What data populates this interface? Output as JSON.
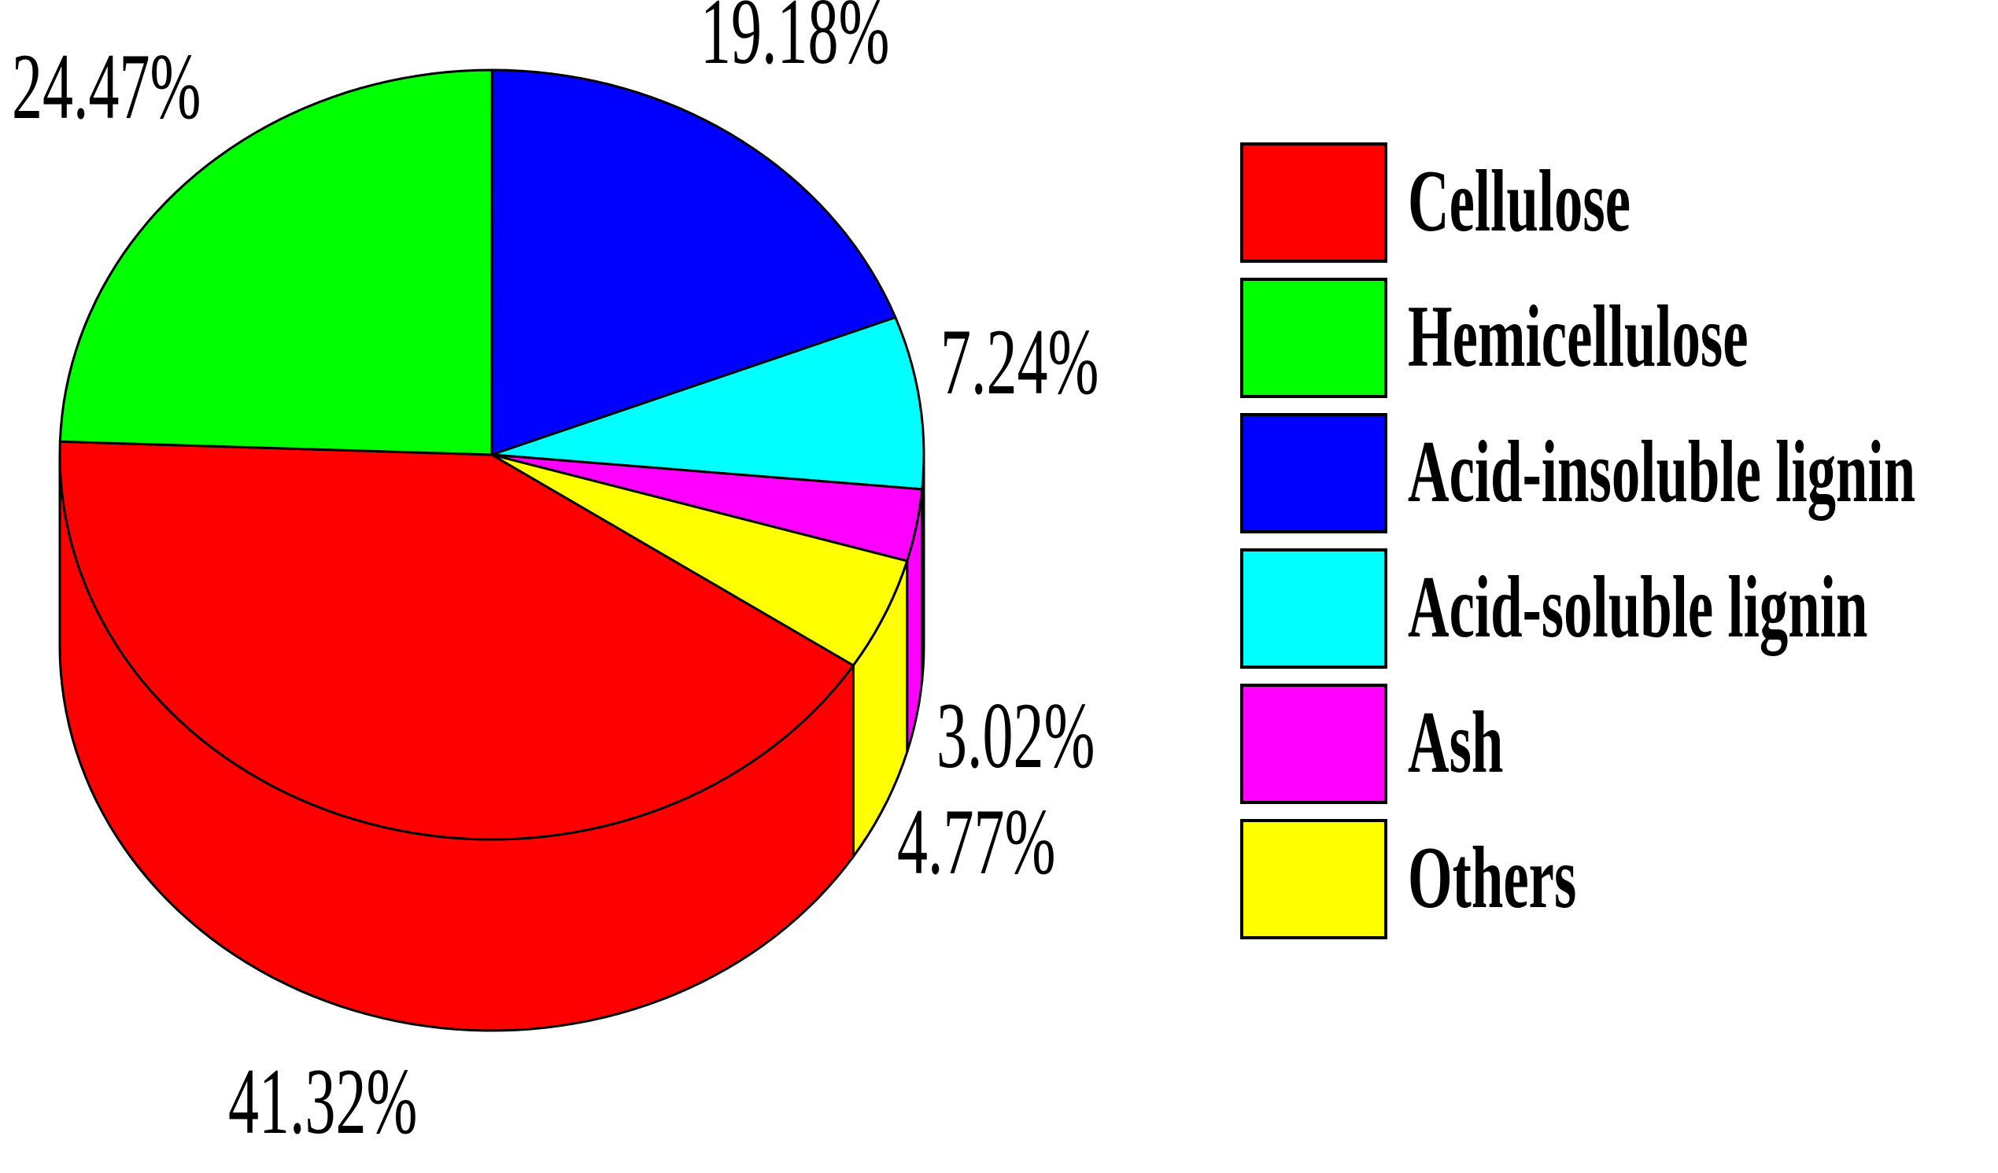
{
  "chart_data": {
    "type": "pie3d",
    "categories": [
      "Cellulose",
      "Hemicellulose",
      "Acid-insoluble lignin",
      "Acid-soluble lignin",
      "Ash",
      "Others"
    ],
    "values": [
      41.32,
      24.47,
      19.18,
      7.24,
      3.02,
      4.77
    ],
    "value_labels": [
      "41.32%",
      "24.47%",
      "19.18%",
      "7.24%",
      "3.02%",
      "4.77%"
    ],
    "colors": [
      "#ff0000",
      "#00ff00",
      "#0000ff",
      "#00ffff",
      "#ff00ff",
      "#ffff00"
    ],
    "legend": "right"
  }
}
